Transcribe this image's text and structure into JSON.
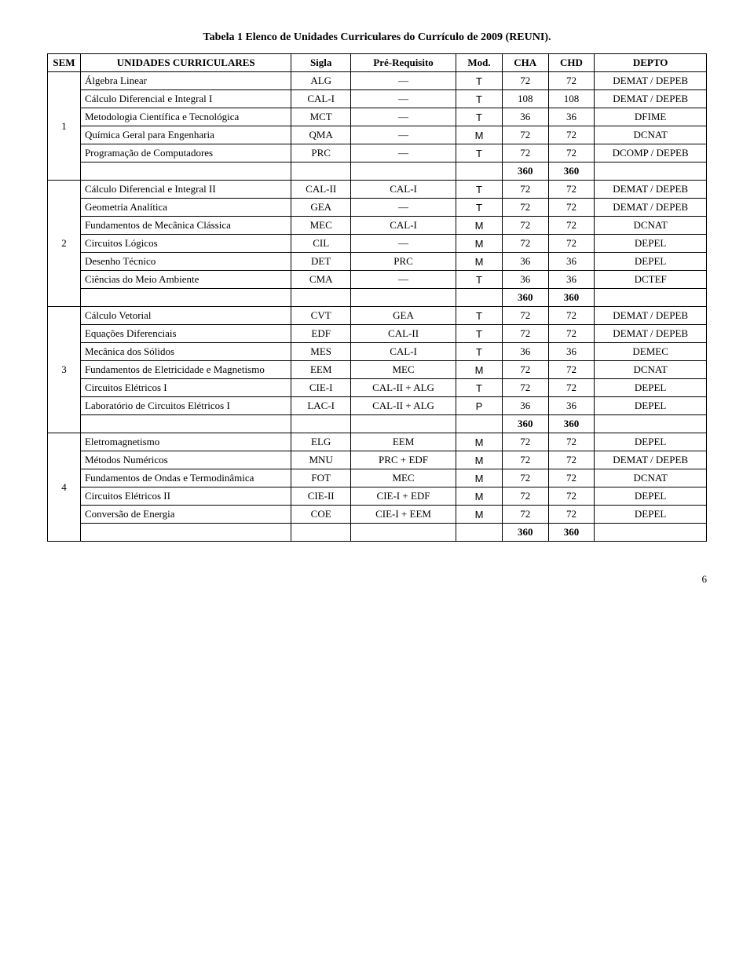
{
  "title": "Tabela 1 Elenco de Unidades Curriculares do Currículo de 2009 (REUNI).",
  "headers": {
    "sem": "SEM",
    "unit": "UNIDADES CURRICULARES",
    "sigla": "Sigla",
    "prereq": "Pré-Requisito",
    "mod": "Mod.",
    "cha": "CHA",
    "chd": "CHD",
    "depto": "DEPTO"
  },
  "semesters": [
    {
      "num": "1",
      "rows": [
        {
          "name": "Álgebra Linear",
          "sigla": "ALG",
          "prereq": "—",
          "mod": "T",
          "cha": "72",
          "chd": "72",
          "depto": "DEMAT / DEPEB"
        },
        {
          "name": "Cálculo Diferencial e Integral I",
          "sigla": "CAL-I",
          "prereq": "—",
          "mod": "T",
          "cha": "108",
          "chd": "108",
          "depto": "DEMAT / DEPEB"
        },
        {
          "name": "Metodologia Científica e Tecnológica",
          "sigla": "MCT",
          "prereq": "—",
          "mod": "T",
          "cha": "36",
          "chd": "36",
          "depto": "DFIME"
        },
        {
          "name": "Química Geral para Engenharia",
          "sigla": "QMA",
          "prereq": "—",
          "mod": "M",
          "cha": "72",
          "chd": "72",
          "depto": "DCNAT"
        },
        {
          "name": "Programação de Computadores",
          "sigla": "PRC",
          "prereq": "—",
          "mod": "T",
          "cha": "72",
          "chd": "72",
          "depto": "DCOMP / DEPEB"
        }
      ],
      "subtotal": {
        "cha": "360",
        "chd": "360"
      }
    },
    {
      "num": "2",
      "rows": [
        {
          "name": "Cálculo Diferencial e Integral II",
          "sigla": "CAL-II",
          "prereq": "CAL-I",
          "mod": "T",
          "cha": "72",
          "chd": "72",
          "depto": "DEMAT / DEPEB"
        },
        {
          "name": "Geometria Analítica",
          "sigla": "GEA",
          "prereq": "—",
          "mod": "T",
          "cha": "72",
          "chd": "72",
          "depto": "DEMAT / DEPEB"
        },
        {
          "name": "Fundamentos de Mecânica Clássica",
          "sigla": "MEC",
          "prereq": "CAL-I",
          "mod": "M",
          "cha": "72",
          "chd": "72",
          "depto": "DCNAT"
        },
        {
          "name": "Circuitos Lógicos",
          "sigla": "CIL",
          "prereq": "—",
          "mod": "M",
          "cha": "72",
          "chd": "72",
          "depto": "DEPEL"
        },
        {
          "name": "Desenho Técnico",
          "sigla": "DET",
          "prereq": "PRC",
          "mod": "M",
          "cha": "36",
          "chd": "36",
          "depto": "DEPEL"
        },
        {
          "name": "Ciências do Meio Ambiente",
          "sigla": "CMA",
          "prereq": "—",
          "mod": "T",
          "cha": "36",
          "chd": "36",
          "depto": "DCTEF"
        }
      ],
      "subtotal": {
        "cha": "360",
        "chd": "360"
      }
    },
    {
      "num": "3",
      "rows": [
        {
          "name": "Cálculo Vetorial",
          "sigla": "CVT",
          "prereq": "GEA",
          "mod": "T",
          "cha": "72",
          "chd": "72",
          "depto": "DEMAT / DEPEB"
        },
        {
          "name": "Equações Diferenciais",
          "sigla": "EDF",
          "prereq": "CAL-II",
          "mod": "T",
          "cha": "72",
          "chd": "72",
          "depto": "DEMAT / DEPEB"
        },
        {
          "name": "Mecânica dos Sólidos",
          "sigla": "MES",
          "prereq": "CAL-I",
          "mod": "T",
          "cha": "36",
          "chd": "36",
          "depto": "DEMEC"
        },
        {
          "name": "Fundamentos de Eletricidade e Magnetismo",
          "sigla": "EEM",
          "prereq": "MEC",
          "mod": "M",
          "cha": "72",
          "chd": "72",
          "depto": "DCNAT"
        },
        {
          "name": "Circuitos Elétricos I",
          "sigla": "CIE-I",
          "prereq": "CAL-II + ALG",
          "mod": "T",
          "cha": "72",
          "chd": "72",
          "depto": "DEPEL"
        },
        {
          "name": "Laboratório de Circuitos Elétricos I",
          "sigla": "LAC-I",
          "prereq": "CAL-II + ALG",
          "mod": "P",
          "cha": "36",
          "chd": "36",
          "depto": "DEPEL"
        }
      ],
      "subtotal": {
        "cha": "360",
        "chd": "360"
      }
    },
    {
      "num": "4",
      "rows": [
        {
          "name": "Eletromagnetismo",
          "sigla": "ELG",
          "prereq": "EEM",
          "mod": "M",
          "cha": "72",
          "chd": "72",
          "depto": "DEPEL"
        },
        {
          "name": "Métodos Numéricos",
          "sigla": "MNU",
          "prereq": "PRC + EDF",
          "mod": "M",
          "cha": "72",
          "chd": "72",
          "depto": "DEMAT / DEPEB"
        },
        {
          "name": "Fundamentos de Ondas e Termodinâmica",
          "sigla": "FOT",
          "prereq": "MEC",
          "mod": "M",
          "cha": "72",
          "chd": "72",
          "depto": "DCNAT"
        },
        {
          "name": "Circuitos Elétricos II",
          "sigla": "CIE-II",
          "prereq": "CIE-I + EDF",
          "mod": "M",
          "cha": "72",
          "chd": "72",
          "depto": "DEPEL"
        },
        {
          "name": "Conversão de Energia",
          "sigla": "COE",
          "prereq": "CIE-I + EEM",
          "mod": "M",
          "cha": "72",
          "chd": "72",
          "depto": "DEPEL"
        }
      ],
      "subtotal": {
        "cha": "360",
        "chd": "360"
      }
    }
  ],
  "page_number": "6"
}
